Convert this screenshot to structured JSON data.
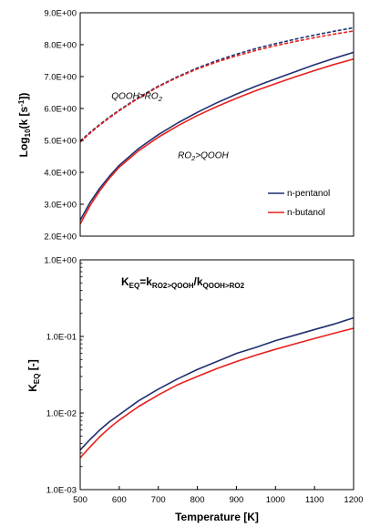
{
  "colors": {
    "pentanol": "#1f2f6e",
    "butanol": "#e8201d",
    "axis": "#000000"
  },
  "chart_data": [
    {
      "type": "line",
      "ylabel": {
        "pre": "Log",
        "sub": "10",
        "mid": "(k [s",
        "sup": "-1",
        "post": "])"
      },
      "xlim": [
        500,
        1200
      ],
      "ylim": [
        2.0,
        9.0
      ],
      "yscale": "linear",
      "yticks": [
        {
          "v": 2.0,
          "label": "2.0E+00"
        },
        {
          "v": 3.0,
          "label": "3.0E+00"
        },
        {
          "v": 4.0,
          "label": "4.0E+00"
        },
        {
          "v": 5.0,
          "label": "5.0E+00"
        },
        {
          "v": 6.0,
          "label": "6.0E+00"
        },
        {
          "v": 7.0,
          "label": "7.0E+00"
        },
        {
          "v": 8.0,
          "label": "8.0E+00"
        },
        {
          "v": 9.0,
          "label": "9.0E+00"
        }
      ],
      "annotations": [
        {
          "text": "QOOH>RO",
          "sub": "2",
          "x": 580,
          "y": 6.3
        },
        {
          "text": "RO",
          "sub": "2",
          "post": ">QOOH",
          "x": 750,
          "y": 4.45
        }
      ],
      "legend": {
        "position": "bottom-right",
        "entries": [
          "n-pentanol",
          "n-butanol"
        ]
      },
      "series": [
        {
          "name": "n-pentanol",
          "color": "pentanol",
          "dash": false,
          "x": [
            500,
            525,
            550,
            575,
            600,
            650,
            700,
            750,
            800,
            850,
            900,
            950,
            1000,
            1050,
            1100,
            1150,
            1200
          ],
          "y": [
            2.5,
            3.05,
            3.5,
            3.88,
            4.22,
            4.75,
            5.18,
            5.55,
            5.88,
            6.18,
            6.45,
            6.7,
            6.93,
            7.15,
            7.37,
            7.57,
            7.76
          ]
        },
        {
          "name": "n-butanol",
          "color": "butanol",
          "dash": false,
          "x": [
            500,
            525,
            550,
            575,
            600,
            650,
            700,
            750,
            800,
            850,
            900,
            950,
            1000,
            1050,
            1100,
            1150,
            1200
          ],
          "y": [
            2.38,
            2.95,
            3.42,
            3.82,
            4.16,
            4.68,
            5.1,
            5.46,
            5.78,
            6.06,
            6.32,
            6.56,
            6.78,
            6.99,
            7.19,
            7.38,
            7.55
          ]
        },
        {
          "name": "n-pentanol QOOH>RO2",
          "color": "pentanol",
          "dash": true,
          "x": [
            500,
            525,
            550,
            575,
            600,
            650,
            700,
            750,
            800,
            850,
            900,
            950,
            1000,
            1050,
            1100,
            1150,
            1200
          ],
          "y": [
            4.98,
            5.25,
            5.5,
            5.73,
            5.95,
            6.35,
            6.7,
            7.0,
            7.27,
            7.5,
            7.7,
            7.88,
            8.03,
            8.17,
            8.3,
            8.42,
            8.53
          ]
        },
        {
          "name": "n-butanol QOOH>RO2",
          "color": "butanol",
          "dash": true,
          "x": [
            500,
            525,
            550,
            575,
            600,
            650,
            700,
            750,
            800,
            850,
            900,
            950,
            1000,
            1050,
            1100,
            1150,
            1200
          ],
          "y": [
            4.95,
            5.22,
            5.48,
            5.71,
            5.93,
            6.33,
            6.68,
            6.98,
            7.24,
            7.46,
            7.65,
            7.82,
            7.97,
            8.1,
            8.22,
            8.33,
            8.43
          ]
        }
      ]
    },
    {
      "type": "line",
      "xlabel": "Temperature [K]",
      "ylabel": {
        "pre": "K",
        "sub": "EQ",
        "post": " [-]"
      },
      "title": {
        "pre": "K",
        "sub1": "EQ",
        "mid1": "=k",
        "sub2": "RO2>QOOH",
        "mid2": "/k",
        "sub3": "QOOH>RO2"
      },
      "xlim": [
        500,
        1200
      ],
      "ylim": [
        0.001,
        1.0
      ],
      "yscale": "log",
      "yticks": [
        {
          "v": 0.001,
          "label": "1.0E-03"
        },
        {
          "v": 0.01,
          "label": "1.0E-02"
        },
        {
          "v": 0.1,
          "label": "1.0E-01"
        },
        {
          "v": 1.0,
          "label": "1.0E+00"
        }
      ],
      "xticks": [
        {
          "v": 500,
          "label": "500"
        },
        {
          "v": 600,
          "label": "600"
        },
        {
          "v": 700,
          "label": "700"
        },
        {
          "v": 800,
          "label": "800"
        },
        {
          "v": 900,
          "label": "900"
        },
        {
          "v": 1000,
          "label": "1000"
        },
        {
          "v": 1100,
          "label": "1100"
        },
        {
          "v": 1200,
          "label": "1200"
        }
      ],
      "series": [
        {
          "name": "n-pentanol",
          "color": "pentanol",
          "dash": false,
          "x": [
            500,
            525,
            550,
            575,
            600,
            650,
            700,
            750,
            800,
            850,
            900,
            950,
            1000,
            1050,
            1100,
            1150,
            1200
          ],
          "y": [
            0.0033,
            0.0045,
            0.006,
            0.0077,
            0.0095,
            0.0145,
            0.0205,
            0.028,
            0.037,
            0.047,
            0.06,
            0.072,
            0.088,
            0.104,
            0.123,
            0.145,
            0.175
          ]
        },
        {
          "name": "n-butanol",
          "color": "butanol",
          "dash": false,
          "x": [
            500,
            525,
            550,
            575,
            600,
            650,
            700,
            750,
            800,
            850,
            900,
            950,
            1000,
            1050,
            1100,
            1150,
            1200
          ],
          "y": [
            0.0026,
            0.0036,
            0.0049,
            0.0064,
            0.0081,
            0.0122,
            0.0172,
            0.0235,
            0.03,
            0.038,
            0.047,
            0.057,
            0.068,
            0.08,
            0.094,
            0.11,
            0.128
          ]
        }
      ]
    }
  ]
}
